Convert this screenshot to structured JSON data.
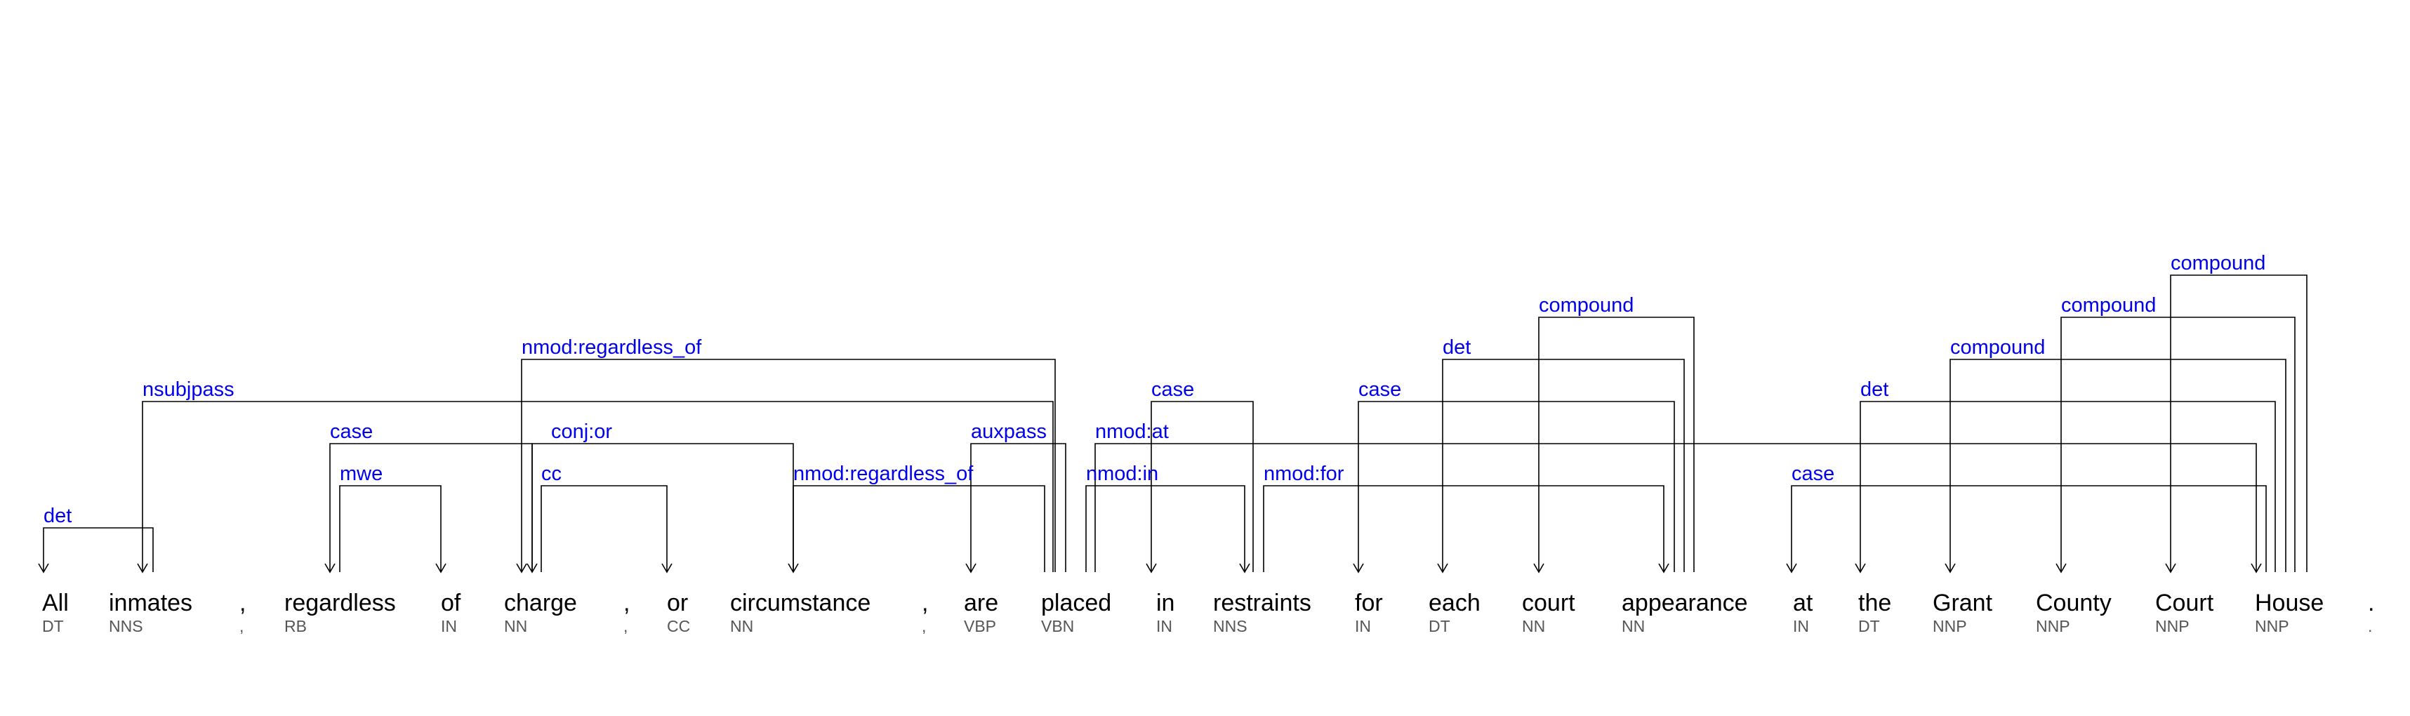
{
  "tokens": [
    {
      "word": "All",
      "tag": "DT"
    },
    {
      "word": "inmates",
      "tag": "NNS"
    },
    {
      "word": ",",
      "tag": ","
    },
    {
      "word": "regardless",
      "tag": "RB"
    },
    {
      "word": "of",
      "tag": "IN"
    },
    {
      "word": "charge",
      "tag": "NN"
    },
    {
      "word": ",",
      "tag": ","
    },
    {
      "word": "or",
      "tag": "CC"
    },
    {
      "word": "circumstance",
      "tag": "NN"
    },
    {
      "word": ",",
      "tag": ","
    },
    {
      "word": "are",
      "tag": "VBP"
    },
    {
      "word": "placed",
      "tag": "VBN"
    },
    {
      "word": "in",
      "tag": "IN"
    },
    {
      "word": "restraints",
      "tag": "NNS"
    },
    {
      "word": "for",
      "tag": "IN"
    },
    {
      "word": "each",
      "tag": "DT"
    },
    {
      "word": "court",
      "tag": "NN"
    },
    {
      "word": "appearance",
      "tag": "NN"
    },
    {
      "word": "at",
      "tag": "IN"
    },
    {
      "word": "the",
      "tag": "DT"
    },
    {
      "word": "Grant",
      "tag": "NNP"
    },
    {
      "word": "County",
      "tag": "NNP"
    },
    {
      "word": "Court",
      "tag": "NNP"
    },
    {
      "word": "House",
      "tag": "NNP"
    },
    {
      "word": ".",
      "tag": "."
    }
  ],
  "arcs": [
    {
      "label": "det",
      "head": 1,
      "dep": 0
    },
    {
      "label": "nsubjpass",
      "head": 11,
      "dep": 1
    },
    {
      "label": "case",
      "head": 5,
      "dep": 3
    },
    {
      "label": "mwe",
      "head": 3,
      "dep": 4
    },
    {
      "label": "nmod:regardless_of",
      "head": 11,
      "dep": 5
    },
    {
      "label": "conj:or",
      "head": 5,
      "dep": 8
    },
    {
      "label": "cc",
      "head": 5,
      "dep": 7
    },
    {
      "label": "nmod:regardless_of",
      "head": 11,
      "dep": 8
    },
    {
      "label": "auxpass",
      "head": 11,
      "dep": 10
    },
    {
      "label": "nmod:in",
      "head": 11,
      "dep": 13
    },
    {
      "label": "case",
      "head": 13,
      "dep": 12
    },
    {
      "label": "nmod:at",
      "head": 11,
      "dep": 23
    },
    {
      "label": "nmod:for",
      "head": 11,
      "dep": 17
    },
    {
      "label": "case",
      "head": 17,
      "dep": 14
    },
    {
      "label": "det",
      "head": 17,
      "dep": 15
    },
    {
      "label": "compound",
      "head": 17,
      "dep": 16
    },
    {
      "label": "case",
      "head": 23,
      "dep": 18
    },
    {
      "label": "det",
      "head": 23,
      "dep": 19
    },
    {
      "label": "compound",
      "head": 23,
      "dep": 20
    },
    {
      "label": "compound",
      "head": 23,
      "dep": 21
    },
    {
      "label": "compound",
      "head": 23,
      "dep": 22
    }
  ]
}
